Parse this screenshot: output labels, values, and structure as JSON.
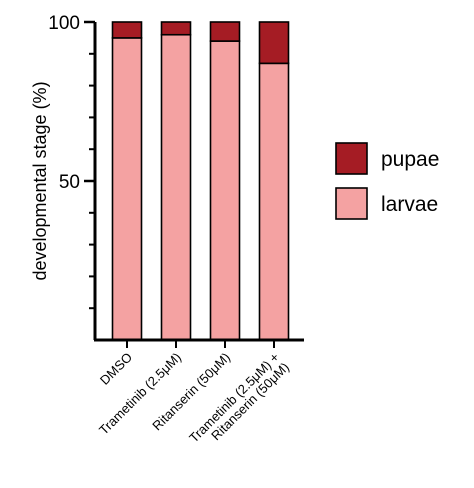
{
  "chart_data": {
    "type": "bar",
    "stacked": true,
    "categories": [
      [
        "DMSO"
      ],
      [
        "Trametinib (2.5μM)"
      ],
      [
        "Ritanserin (50μM)"
      ],
      [
        "Trametinib (2.5μM) +",
        "Ritanserin (50μM)"
      ]
    ],
    "series": [
      {
        "name": "larvae",
        "values": [
          95,
          96,
          94,
          87
        ],
        "color": "#f4a2a2"
      },
      {
        "name": "pupae",
        "values": [
          5,
          4,
          6,
          13
        ],
        "color": "#a51c24"
      }
    ],
    "ylabel": "developmental stage (%)",
    "ylim": [
      0,
      100
    ],
    "yticks": [
      "50",
      "100"
    ],
    "legend_order": [
      "pupae",
      "larvae"
    ],
    "legend_position": "right",
    "grid": false
  }
}
